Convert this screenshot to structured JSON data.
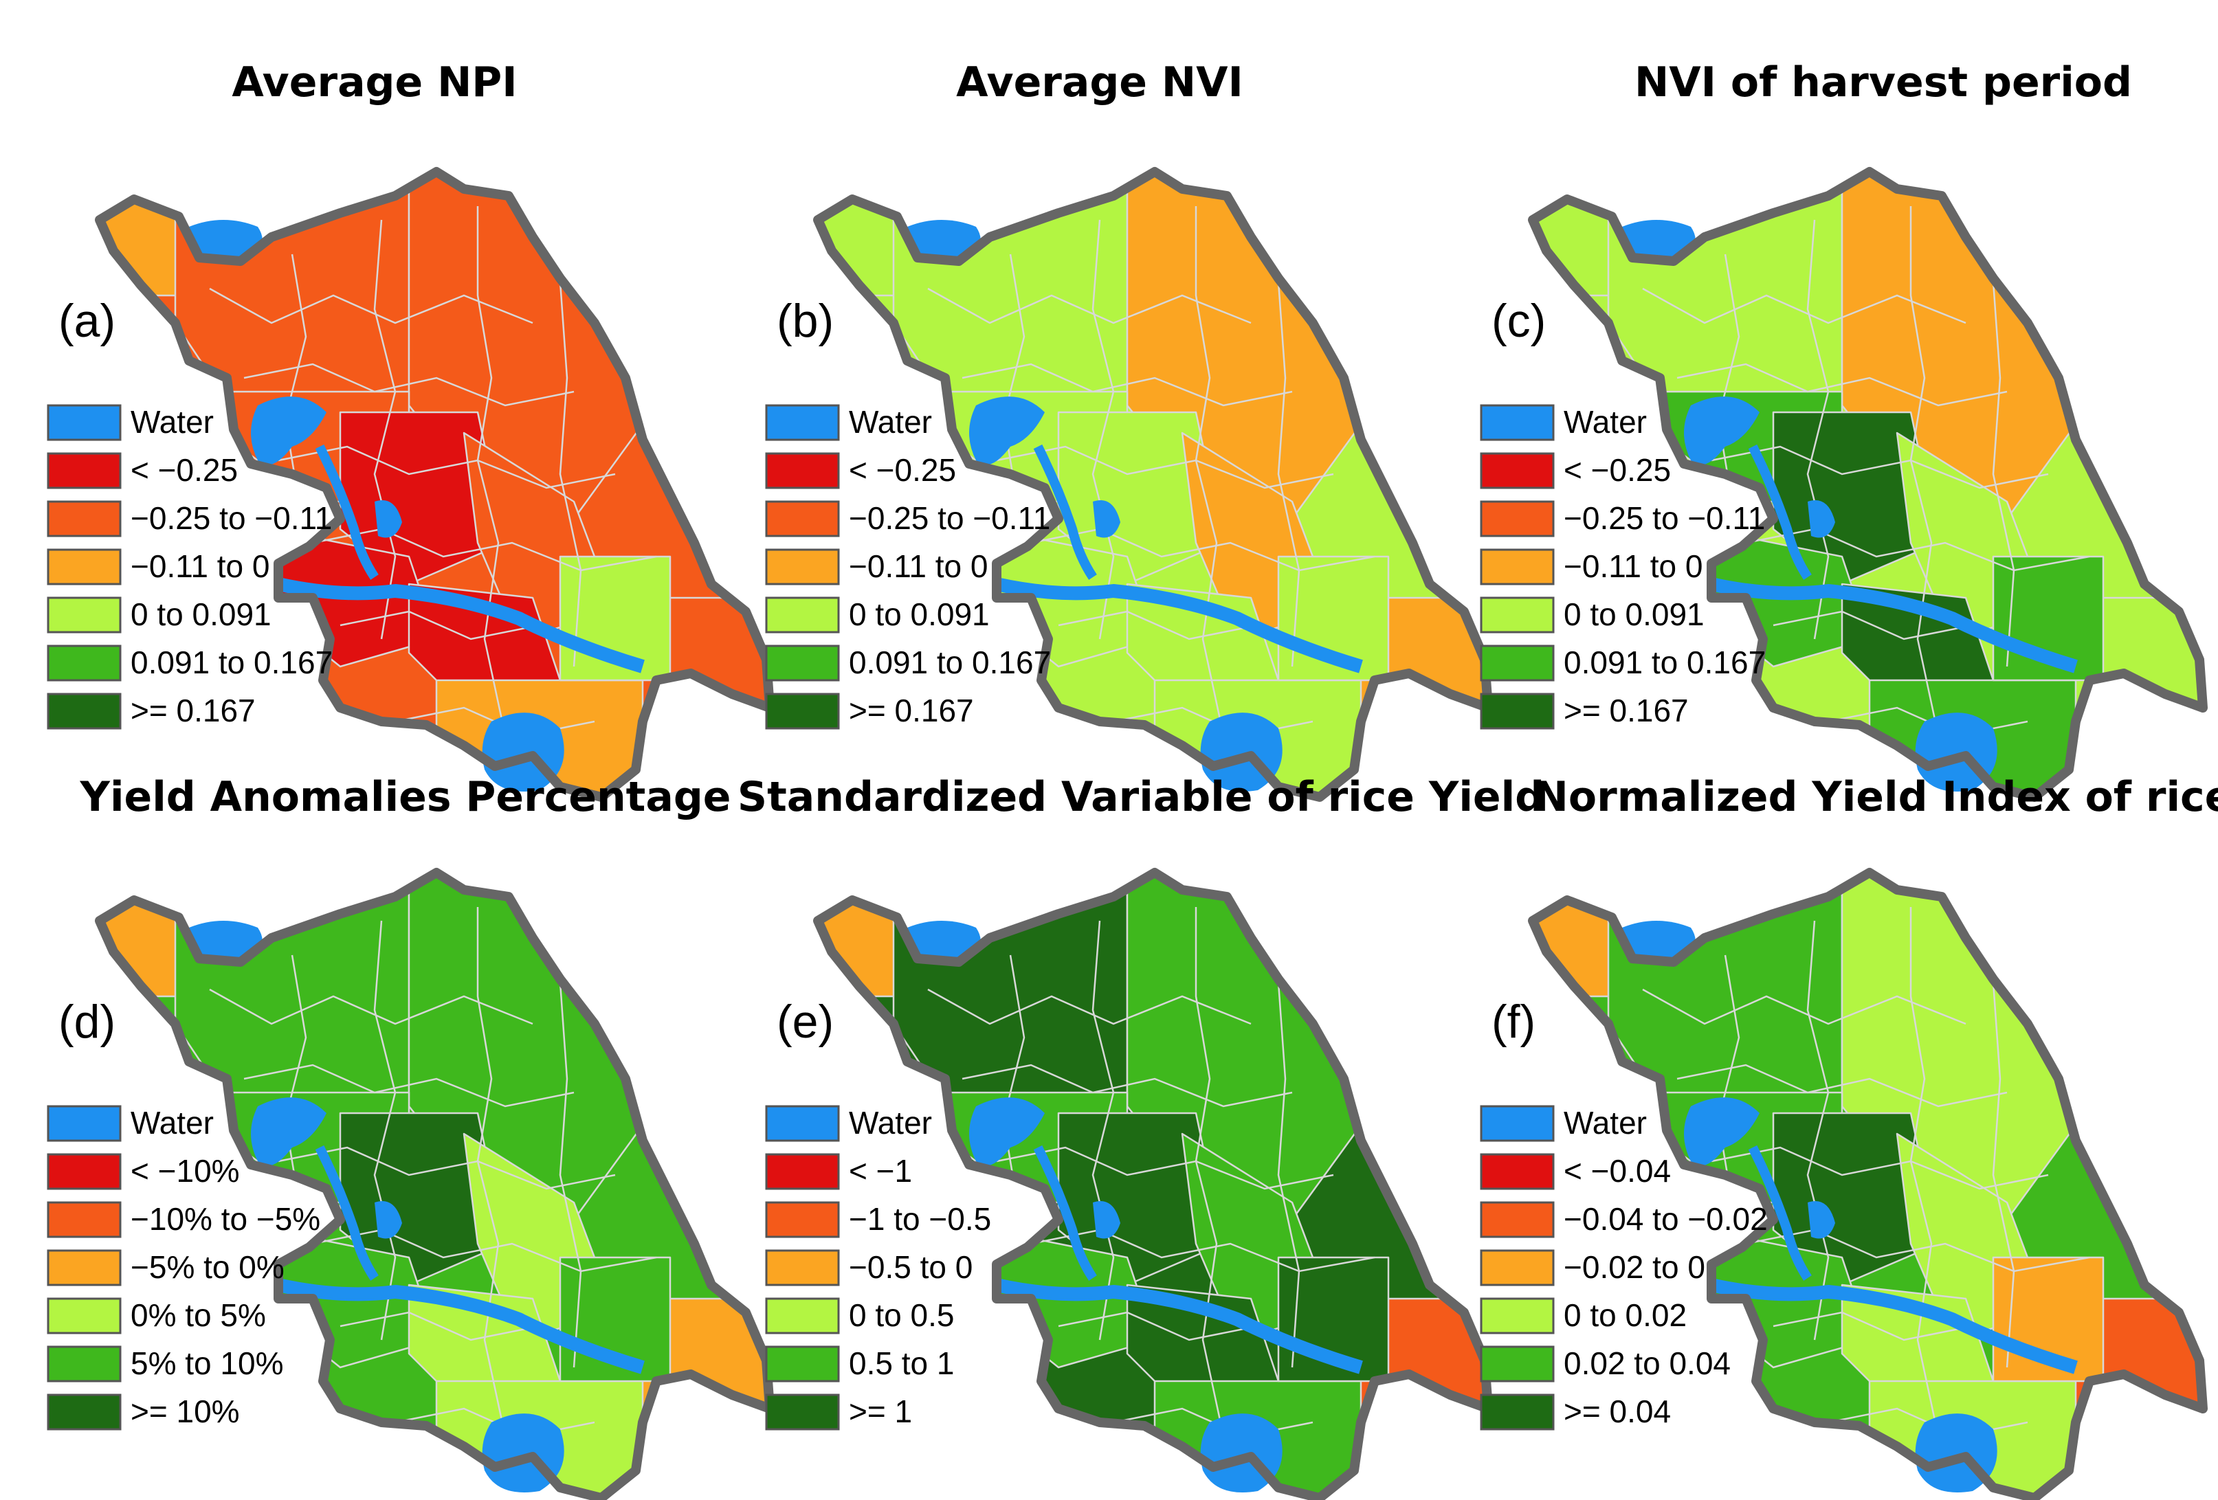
{
  "colors": {
    "water": "#1e90f0",
    "lt_m025": "#e01010",
    "m025_m011": "#f45a1a",
    "m011_0": "#fba522",
    "0_0091": "#b3f542",
    "0091_0167": "#3fb81d",
    "ge_0167": "#1e6b14",
    "boundary": "#666666"
  },
  "panels": [
    {
      "title": "Average NPI",
      "letter": "(a)",
      "legend": [
        {
          "label": "Water",
          "color": "#1e90f0"
        },
        {
          "label": "< −0.25",
          "color": "#e01010"
        },
        {
          "label": "−0.25 to −0.11",
          "color": "#f45a1a"
        },
        {
          "label": "−0.11 to 0",
          "color": "#fba522"
        },
        {
          "label": "0 to 0.091",
          "color": "#b3f542"
        },
        {
          "label": "0.091 to 0.167",
          "color": "#3fb81d"
        },
        {
          "label": ">= 0.167",
          "color": "#1e6b14"
        }
      ],
      "zones": [
        "#fba522",
        "#f45a1a",
        "#f45a1a",
        "#f45a1a",
        "#e01010",
        "#f45a1a",
        "#e01010",
        "#e01010",
        "#f45a1a",
        "#fba522",
        "#b3f542"
      ]
    },
    {
      "title": "Average NVI",
      "letter": "(b)",
      "legend": [
        {
          "label": "Water",
          "color": "#1e90f0"
        },
        {
          "label": "< −0.25",
          "color": "#e01010"
        },
        {
          "label": "−0.25 to −0.11",
          "color": "#f45a1a"
        },
        {
          "label": "−0.11 to 0",
          "color": "#fba522"
        },
        {
          "label": "0 to 0.091",
          "color": "#b3f542"
        },
        {
          "label": "0.091 to 0.167",
          "color": "#3fb81d"
        },
        {
          "label": ">= 0.167",
          "color": "#1e6b14"
        }
      ],
      "zones": [
        "#b3f542",
        "#b3f542",
        "#fba522",
        "#b3f542",
        "#b3f542",
        "#fba522",
        "#b3f542",
        "#b3f542",
        "#fba522",
        "#b3f542",
        "#b3f542"
      ]
    },
    {
      "title": "NVI of harvest period",
      "letter": "(c)",
      "legend": [
        {
          "label": "Water",
          "color": "#1e90f0"
        },
        {
          "label": "< −0.25",
          "color": "#e01010"
        },
        {
          "label": "−0.25 to −0.11",
          "color": "#f45a1a"
        },
        {
          "label": "−0.11 to 0",
          "color": "#fba522"
        },
        {
          "label": "0 to 0.091",
          "color": "#b3f542"
        },
        {
          "label": "0.091 to 0.167",
          "color": "#3fb81d"
        },
        {
          "label": ">= 0.167",
          "color": "#1e6b14"
        }
      ],
      "zones": [
        "#b3f542",
        "#b3f542",
        "#fba522",
        "#3fb81d",
        "#1e6b14",
        "#b3f542",
        "#3fb81d",
        "#1e6b14",
        "#b3f542",
        "#3fb81d",
        "#3fb81d"
      ]
    },
    {
      "title": "Yield Anomalies Percentage",
      "letter": "(d)",
      "legend": [
        {
          "label": "Water",
          "color": "#1e90f0"
        },
        {
          "label": "< −10%",
          "color": "#e01010"
        },
        {
          "label": "−10% to −5%",
          "color": "#f45a1a"
        },
        {
          "label": "−5% to 0%",
          "color": "#fba522"
        },
        {
          "label": "0% to 5%",
          "color": "#b3f542"
        },
        {
          "label": "5% to 10%",
          "color": "#3fb81d"
        },
        {
          "label": ">= 10%",
          "color": "#1e6b14"
        }
      ],
      "zones": [
        "#fba522",
        "#3fb81d",
        "#3fb81d",
        "#3fb81d",
        "#1e6b14",
        "#b3f542",
        "#3fb81d",
        "#b3f542",
        "#fba522",
        "#b3f542",
        "#3fb81d"
      ]
    },
    {
      "title": "Standardized Variable of rice Yield",
      "letter": "(e)",
      "legend": [
        {
          "label": "Water",
          "color": "#1e90f0"
        },
        {
          "label": "< −1",
          "color": "#e01010"
        },
        {
          "label": "−1 to −0.5",
          "color": "#f45a1a"
        },
        {
          "label": "−0.5 to 0",
          "color": "#fba522"
        },
        {
          "label": "0 to 0.5",
          "color": "#b3f542"
        },
        {
          "label": "0.5 to 1",
          "color": "#3fb81d"
        },
        {
          "label": ">= 1",
          "color": "#1e6b14"
        }
      ],
      "zones": [
        "#fba522",
        "#1e6b14",
        "#3fb81d",
        "#3fb81d",
        "#1e6b14",
        "#3fb81d",
        "#3fb81d",
        "#1e6b14",
        "#f45a1a",
        "#3fb81d",
        "#1e6b14"
      ]
    },
    {
      "title": "Normalized Yield Index of rice",
      "letter": "(f)",
      "legend": [
        {
          "label": "Water",
          "color": "#1e90f0"
        },
        {
          "label": "< −0.04",
          "color": "#e01010"
        },
        {
          "label": "−0.04 to −0.02",
          "color": "#f45a1a"
        },
        {
          "label": "−0.02 to 0",
          "color": "#fba522"
        },
        {
          "label": "0 to 0.02",
          "color": "#b3f542"
        },
        {
          "label": "0.02 to 0.04",
          "color": "#3fb81d"
        },
        {
          "label": ">= 0.04",
          "color": "#1e6b14"
        }
      ],
      "zones": [
        "#fba522",
        "#3fb81d",
        "#b3f542",
        "#3fb81d",
        "#1e6b14",
        "#b3f542",
        "#3fb81d",
        "#b3f542",
        "#f45a1a",
        "#b3f542",
        "#fba522"
      ]
    }
  ]
}
